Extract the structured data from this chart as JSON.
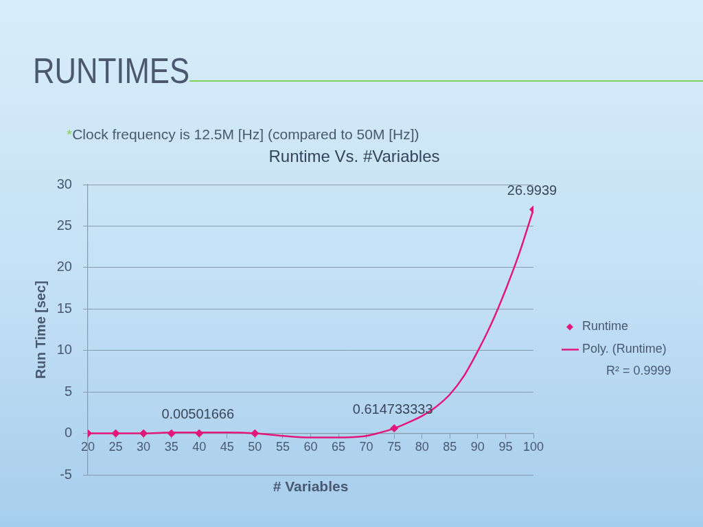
{
  "chart_data": {
    "type": "scatter",
    "title": "RUNTIMES",
    "subtitle": "Runtime Vs. #Variables",
    "xlabel": "# Variables",
    "ylabel": "Run Time [sec]",
    "annotations": [
      "*Clock frequency is 12.5M [Hz] (compared to 50M [Hz])",
      "R² = 0.9999"
    ],
    "xlim": [
      20,
      100
    ],
    "xticks": [
      20,
      25,
      30,
      35,
      40,
      45,
      50,
      55,
      60,
      65,
      70,
      75,
      80,
      85,
      90,
      95,
      100
    ],
    "ylim": [
      -5,
      30
    ],
    "yticks": [
      -5,
      0,
      5,
      10,
      15,
      20,
      25,
      30
    ],
    "grid": "y",
    "legend": "right",
    "series": [
      {
        "name": "Runtime",
        "marker": "diamond",
        "color": "#e3177a",
        "x": [
          20,
          25,
          30,
          35,
          40,
          50,
          75,
          100
        ],
        "values": [
          0,
          0,
          0,
          0,
          0.00501666,
          0,
          0.614733333,
          26.9939
        ],
        "value_labels": [
          null,
          null,
          null,
          null,
          "0.00501666",
          null,
          "0.614733333",
          "26.9939"
        ]
      },
      {
        "name": "Poly. (Runtime)",
        "type": "line",
        "marker": "none",
        "line_style": "solid",
        "color": "#e3177a",
        "x": [
          20,
          25,
          30,
          35,
          40,
          45,
          50,
          55,
          60,
          65,
          70,
          72.5,
          75,
          77.5,
          80,
          82.5,
          85,
          87.5,
          90,
          92.5,
          95,
          97.5,
          100
        ],
        "values": [
          0,
          0,
          0,
          0.1,
          0.1,
          0.1,
          0,
          -0.3,
          -0.5,
          -0.5,
          -0.3,
          0.1,
          0.6,
          1.3,
          2.1,
          3.2,
          4.7,
          6.9,
          9.9,
          13.3,
          17.3,
          21.8,
          27
        ]
      }
    ]
  }
}
